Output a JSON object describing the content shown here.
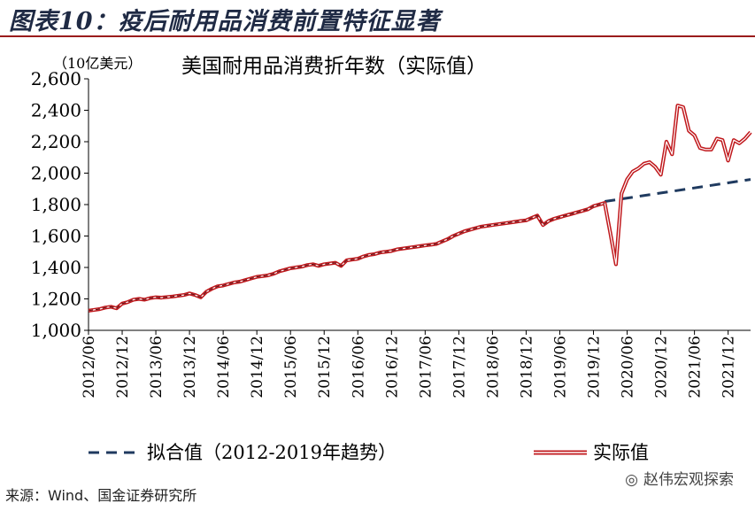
{
  "header": {
    "title": "图表10：疫后耐用品消费前置特征显著"
  },
  "footer": {
    "source": "来源：Wind、国金证券研究所",
    "watermark": "赵伟宏观探索"
  },
  "colors": {
    "actual": "#c0181c",
    "fit": "#1f3a5f",
    "title": "#1f2a44"
  },
  "chart_data": {
    "type": "line",
    "title": "美国耐用品消费折年数（实际值）",
    "unit": "（10亿美元）",
    "ylim": [
      1000,
      2600
    ],
    "yticks": [
      "1,000",
      "1,200",
      "1,400",
      "1,600",
      "1,800",
      "2,000",
      "2,200",
      "2,400",
      "2,600"
    ],
    "xticks": [
      "2012/06",
      "2012/12",
      "2013/06",
      "2013/12",
      "2014/06",
      "2014/12",
      "2015/06",
      "2015/12",
      "2016/06",
      "2016/12",
      "2017/06",
      "2017/12",
      "2018/06",
      "2018/12",
      "2019/06",
      "2019/12",
      "2020/06",
      "2020/12",
      "2021/06",
      "2021/12"
    ],
    "grid": false,
    "legend": "bottom",
    "series": [
      {
        "name": "拟合值（2012-2019年趋势）",
        "style": "dashed",
        "x": [
          "2020/02",
          "2022/04"
        ],
        "values": [
          1820,
          1960
        ]
      },
      {
        "name": "实际值",
        "style": "solid",
        "x": [
          "2012/06",
          "2012/07",
          "2012/08",
          "2012/09",
          "2012/10",
          "2012/11",
          "2012/12",
          "2013/01",
          "2013/02",
          "2013/03",
          "2013/04",
          "2013/05",
          "2013/06",
          "2013/07",
          "2013/08",
          "2013/09",
          "2013/10",
          "2013/11",
          "2013/12",
          "2014/01",
          "2014/02",
          "2014/03",
          "2014/04",
          "2014/05",
          "2014/06",
          "2014/07",
          "2014/08",
          "2014/09",
          "2014/10",
          "2014/11",
          "2014/12",
          "2015/01",
          "2015/02",
          "2015/03",
          "2015/04",
          "2015/05",
          "2015/06",
          "2015/07",
          "2015/08",
          "2015/09",
          "2015/10",
          "2015/11",
          "2015/12",
          "2016/01",
          "2016/02",
          "2016/03",
          "2016/04",
          "2016/05",
          "2016/06",
          "2016/07",
          "2016/08",
          "2016/09",
          "2016/10",
          "2016/11",
          "2016/12",
          "2017/01",
          "2017/02",
          "2017/03",
          "2017/04",
          "2017/05",
          "2017/06",
          "2017/07",
          "2017/08",
          "2017/09",
          "2017/10",
          "2017/11",
          "2017/12",
          "2018/01",
          "2018/02",
          "2018/03",
          "2018/04",
          "2018/05",
          "2018/06",
          "2018/07",
          "2018/08",
          "2018/09",
          "2018/10",
          "2018/11",
          "2018/12",
          "2019/01",
          "2019/02",
          "2019/03",
          "2019/04",
          "2019/05",
          "2019/06",
          "2019/07",
          "2019/08",
          "2019/09",
          "2019/10",
          "2019/11",
          "2019/12",
          "2020/01",
          "2020/02",
          "2020/03",
          "2020/04",
          "2020/05",
          "2020/06",
          "2020/07",
          "2020/08",
          "2020/09",
          "2020/10",
          "2020/11",
          "2020/12",
          "2021/01",
          "2021/02",
          "2021/03",
          "2021/04",
          "2021/05",
          "2021/06",
          "2021/07",
          "2021/08",
          "2021/09",
          "2021/10",
          "2021/11",
          "2021/12",
          "2022/01",
          "2022/02",
          "2022/03",
          "2022/04"
        ],
        "values": [
          1125,
          1130,
          1135,
          1145,
          1150,
          1140,
          1170,
          1180,
          1195,
          1200,
          1195,
          1205,
          1210,
          1208,
          1212,
          1215,
          1220,
          1225,
          1235,
          1225,
          1210,
          1245,
          1265,
          1280,
          1285,
          1295,
          1305,
          1310,
          1320,
          1330,
          1340,
          1345,
          1350,
          1360,
          1375,
          1385,
          1395,
          1400,
          1405,
          1415,
          1420,
          1410,
          1420,
          1425,
          1430,
          1410,
          1445,
          1450,
          1455,
          1470,
          1480,
          1485,
          1495,
          1500,
          1505,
          1515,
          1520,
          1525,
          1530,
          1535,
          1540,
          1545,
          1550,
          1565,
          1580,
          1600,
          1615,
          1630,
          1640,
          1650,
          1660,
          1665,
          1670,
          1675,
          1680,
          1685,
          1690,
          1695,
          1700,
          1715,
          1730,
          1670,
          1695,
          1710,
          1720,
          1730,
          1740,
          1750,
          1760,
          1770,
          1790,
          1800,
          1810,
          1620,
          1420,
          1870,
          1960,
          2010,
          2030,
          2060,
          2070,
          2040,
          1990,
          2200,
          2120,
          2430,
          2420,
          2270,
          2240,
          2160,
          2150,
          2150,
          2220,
          2210,
          2080,
          2210,
          2190,
          2220,
          2260
        ]
      }
    ]
  }
}
